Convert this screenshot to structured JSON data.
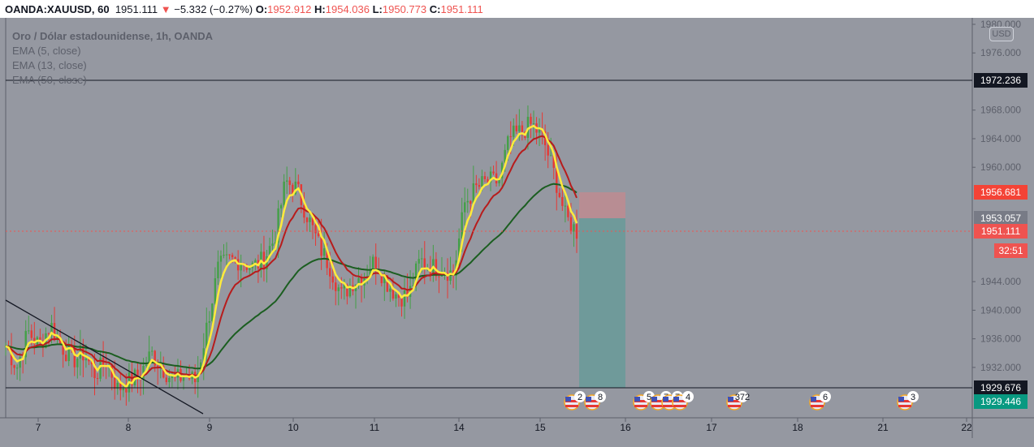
{
  "header": {
    "symbol": "OANDA:XAUUSD, 60",
    "last": "1951.111",
    "change": "−5.332 (−0.27%)",
    "o_label": "O:",
    "o": "1952.912",
    "h_label": "H:",
    "h": "1954.036",
    "l_label": "L:",
    "l": "1950.773",
    "c_label": "C:",
    "c": "1951.111"
  },
  "legend": {
    "title": "Oro / Dólar estadounidense, 1h, OANDA",
    "ema5": "EMA (5, close)",
    "ema13": "EMA (13, close)",
    "ema50": "EMA (50, close)"
  },
  "currency": "USD",
  "price_labels": {
    "high_line": "1972.236",
    "stop": "1956.681",
    "entry": "1953.057",
    "last": "1951.111",
    "countdown": "32:51",
    "low_line": "1929.676",
    "target": "1929.446"
  },
  "colors": {
    "bg": "#9598a1",
    "up": "#26a69a",
    "down": "#ef5350",
    "candle_up": "#43a047",
    "candle_down": "#e53935",
    "ema5": "#ffeb3b",
    "ema13": "#b71c1c",
    "ema50": "#1b5e20"
  },
  "chart_data": {
    "type": "candlestick",
    "ylim": [
      1925,
      1980
    ],
    "y_ticks": [
      "1980.000",
      "1976.000",
      "1968.000",
      "1964.000",
      "1960.000",
      "1944.000",
      "1940.000",
      "1936.000",
      "1932.000"
    ],
    "x_ticks": [
      "7",
      "8",
      "9",
      "10",
      "11",
      "14",
      "15",
      "16",
      "17",
      "18",
      "21",
      "22"
    ],
    "close_path": [
      1935,
      1932,
      1937,
      1935,
      1938,
      1935,
      1933,
      1934,
      1931,
      1933,
      1929,
      1930,
      1931,
      1934,
      1932,
      1930,
      1931,
      1930,
      1938,
      1946,
      1947,
      1947,
      1946,
      1947,
      1950,
      1958,
      1957,
      1953,
      1949,
      1946,
      1942,
      1944,
      1945,
      1947,
      1944,
      1942,
      1942,
      1947,
      1946,
      1946,
      1945,
      1955,
      1957,
      1958,
      1958,
      1964,
      1965,
      1966,
      1964,
      1959,
      1953,
      1951
    ]
  },
  "events": [
    "2",
    "8",
    "5",
    "7",
    "7",
    "4",
    "372",
    "6",
    "3"
  ]
}
